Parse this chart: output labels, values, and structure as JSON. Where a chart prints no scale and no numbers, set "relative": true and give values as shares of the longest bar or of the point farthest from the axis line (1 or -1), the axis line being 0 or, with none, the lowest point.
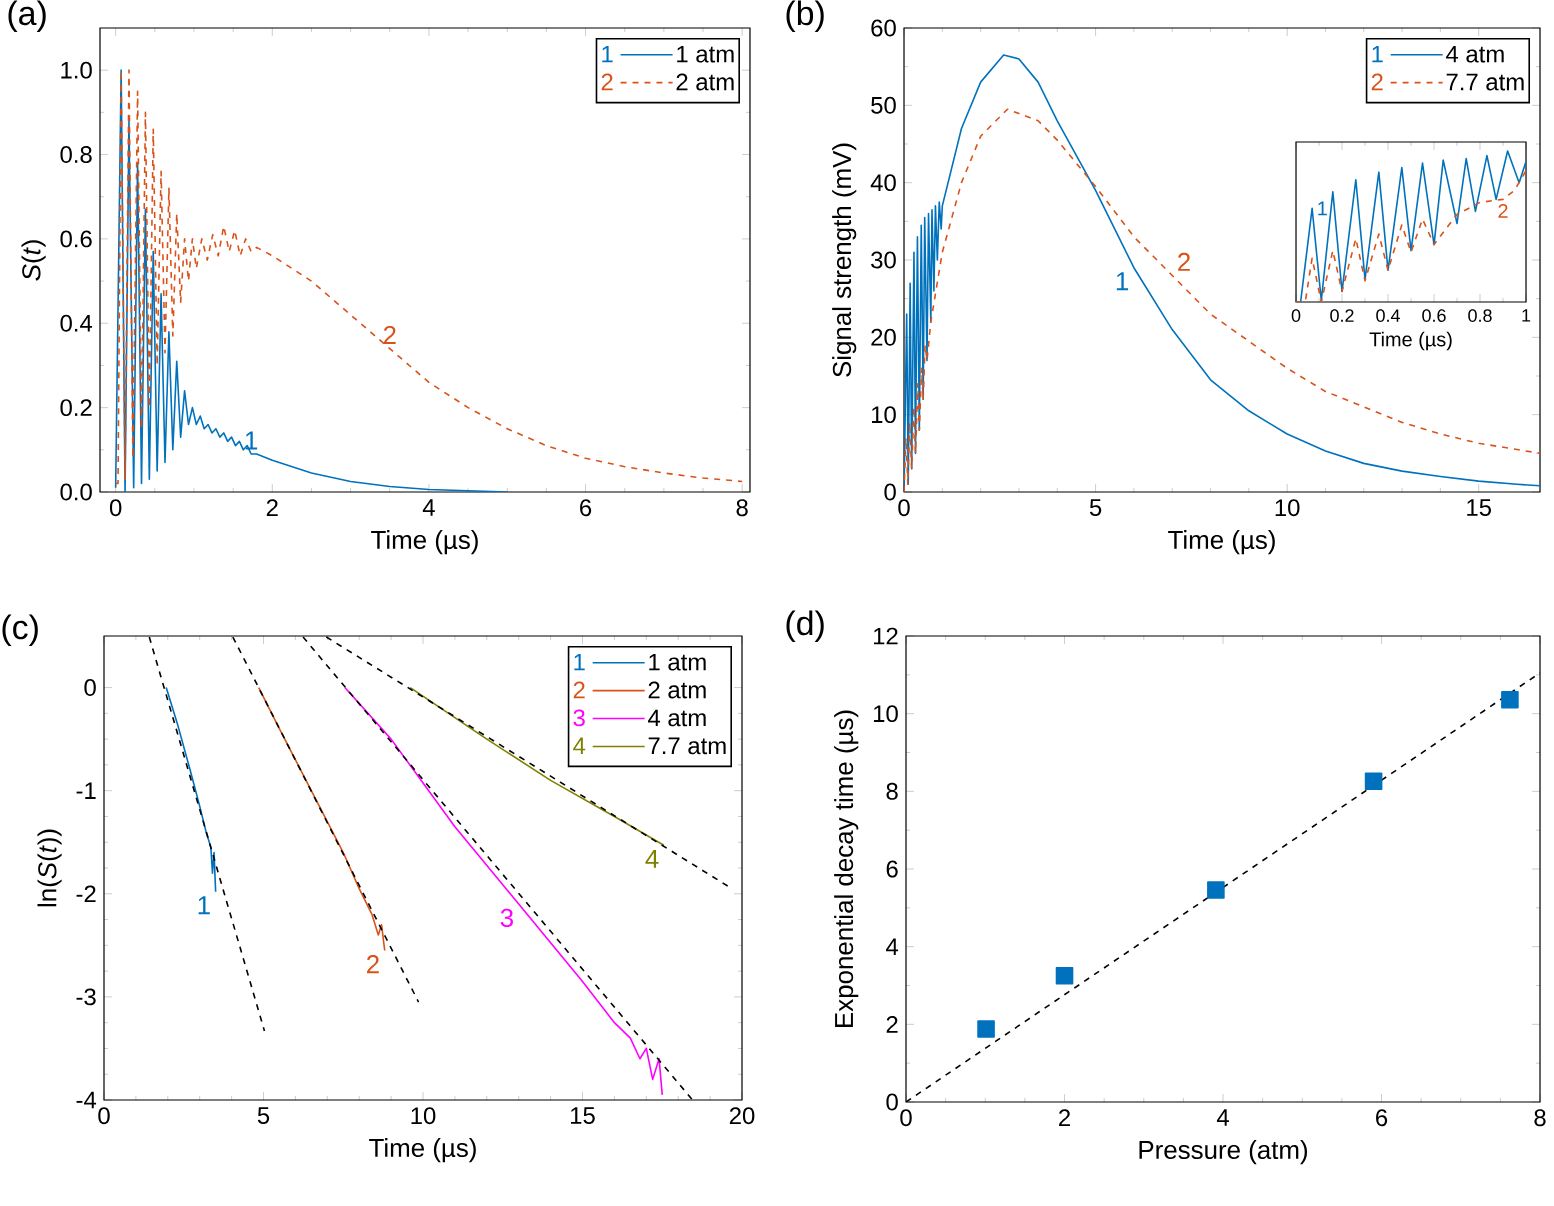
{
  "chart_data": [
    {
      "type": "line",
      "title": "(a)",
      "xlabel": "Time (µs)",
      "ylabel": "*S*(*t*)",
      "xlim": [
        -0.2,
        8.1
      ],
      "xticks": [
        0,
        2,
        4,
        6,
        8
      ],
      "ylim": [
        0,
        1.1
      ],
      "yticks": [
        {
          "value": 0,
          "label": "0.0"
        },
        {
          "value": 0.2,
          "label": "0.2"
        },
        {
          "value": 0.4,
          "label": "0.4"
        },
        {
          "value": 0.6,
          "label": "0.6"
        },
        {
          "value": 0.8,
          "label": "0.8"
        },
        {
          "value": 1,
          "label": "1.0"
        }
      ],
      "legend": "top right",
      "annotations": [
        {
          "text": "1",
          "x": 1.73,
          "y": 0.09
        },
        {
          "text": "2",
          "x": 3.5,
          "y": 0.34
        }
      ],
      "series": [
        {
          "name": "1 atm",
          "color": "#0072bd",
          "x": [
            0,
            0.07,
            0.12,
            0.17,
            0.23,
            0.28,
            0.33,
            0.38,
            0.43,
            0.48,
            0.53,
            0.58,
            0.63,
            0.68,
            0.73,
            0.78,
            0.83,
            0.88,
            0.93,
            0.98,
            1.03,
            1.08,
            1.13,
            1.18,
            1.23,
            1.28,
            1.33,
            1.38,
            1.43,
            1.48,
            1.53,
            1.58,
            1.63,
            1.68,
            1.73,
            1.8,
            2.0,
            2.5,
            3.0,
            3.5,
            4.0,
            4.5,
            5.0
          ],
          "values": [
            0.01,
            1.0,
            0.0,
            0.88,
            0.01,
            0.78,
            0.02,
            0.67,
            0.03,
            0.57,
            0.05,
            0.47,
            0.07,
            0.38,
            0.1,
            0.31,
            0.13,
            0.24,
            0.16,
            0.2,
            0.16,
            0.18,
            0.15,
            0.16,
            0.14,
            0.15,
            0.13,
            0.14,
            0.12,
            0.13,
            0.11,
            0.12,
            0.1,
            0.11,
            0.09,
            0.09,
            0.075,
            0.045,
            0.025,
            0.013,
            0.006,
            0.003,
            0.0
          ]
        },
        {
          "name": "2 atm",
          "color": "#d95319",
          "line_style": "dashed",
          "x": [
            0,
            0.03,
            0.07,
            0.12,
            0.17,
            0.22,
            0.28,
            0.33,
            0.38,
            0.43,
            0.48,
            0.53,
            0.58,
            0.63,
            0.68,
            0.73,
            0.78,
            0.83,
            0.88,
            0.93,
            0.98,
            1.03,
            1.1,
            1.17,
            1.24,
            1.31,
            1.38,
            1.45,
            1.52,
            1.59,
            1.66,
            1.73,
            1.8,
            2.0,
            2.5,
            3.0,
            3.5,
            4.0,
            4.5,
            5.0,
            5.5,
            6.0,
            6.5,
            7.0,
            7.5,
            8.0
          ],
          "values": [
            0.02,
            0.02,
            1.0,
            0.03,
            1.0,
            0.08,
            0.95,
            0.15,
            0.9,
            0.2,
            0.86,
            0.3,
            0.76,
            0.33,
            0.72,
            0.37,
            0.66,
            0.45,
            0.6,
            0.5,
            0.6,
            0.53,
            0.6,
            0.55,
            0.61,
            0.56,
            0.63,
            0.57,
            0.62,
            0.56,
            0.6,
            0.57,
            0.58,
            0.56,
            0.5,
            0.42,
            0.34,
            0.26,
            0.2,
            0.15,
            0.11,
            0.08,
            0.06,
            0.045,
            0.033,
            0.025
          ]
        }
      ]
    },
    {
      "type": "line",
      "title": "(b)",
      "xlabel": "Time (µs)",
      "ylabel": "Signal strength (mV)",
      "xlim": [
        0,
        16.6
      ],
      "xticks": [
        0,
        5,
        10,
        15
      ],
      "ylim": [
        0,
        60
      ],
      "yticks": [
        0,
        10,
        20,
        30,
        40,
        50,
        60
      ],
      "legend": "top right",
      "annotations": [
        {
          "text": "1",
          "x": 6.0,
          "y": 29
        },
        {
          "text": "2",
          "x": 7.0,
          "y": 28
        }
      ],
      "series": [
        {
          "name": "4 atm",
          "color": "#0072bd",
          "x": [
            0,
            0.07,
            0.11,
            0.16,
            0.2,
            0.26,
            0.3,
            0.35,
            0.4,
            0.45,
            0.5,
            0.54,
            0.6,
            0.64,
            0.7,
            0.73,
            0.78,
            0.82,
            0.87,
            0.92,
            0.97,
            1.0,
            1.5,
            2.0,
            2.6,
            3.0,
            3.5,
            4.0,
            4.5,
            5.0,
            5.5,
            6.0,
            7.0,
            8.0,
            9.0,
            10.0,
            11.0,
            12.0,
            13.0,
            14.0,
            15.0,
            16.0,
            16.6
          ],
          "values": [
            0,
            23,
            1,
            27,
            3,
            31,
            5,
            33,
            8,
            34.5,
            12,
            35.5,
            17,
            36,
            22,
            36.5,
            26,
            37,
            30,
            37.5,
            34,
            37,
            47,
            53,
            56.5,
            56,
            53,
            48,
            43.5,
            39,
            34,
            29,
            21,
            14.5,
            10.5,
            7.5,
            5.3,
            3.7,
            2.7,
            2,
            1.4,
            1,
            0.8
          ]
        },
        {
          "name": "7.7 atm",
          "color": "#d95319",
          "line_style": "dashed",
          "x": [
            0,
            0.05,
            0.1,
            0.15,
            0.2,
            0.26,
            0.3,
            0.36,
            0.4,
            0.46,
            0.5,
            0.55,
            0.6,
            0.7,
            0.8,
            0.9,
            1.0,
            1.5,
            2.0,
            2.7,
            3.5,
            4.0,
            5.0,
            6.0,
            7.0,
            8.0,
            9.0,
            10.0,
            11.0,
            12.0,
            13.0,
            14.0,
            15.0,
            16.0,
            16.6
          ],
          "values": [
            0,
            7,
            1,
            9,
            3,
            11,
            5,
            14,
            8,
            16,
            12,
            19,
            17,
            22,
            25,
            28,
            31,
            40,
            46,
            49.5,
            48,
            45.5,
            39.5,
            33,
            28,
            23,
            19.5,
            16,
            13,
            11,
            9,
            7.5,
            6.3,
            5.5,
            5
          ]
        }
      ]
    },
    {
      "type": "line",
      "relative": true,
      "xlabel": "Time (µs)",
      "tick_labels": "x",
      "xlim": [
        0,
        1
      ],
      "xticks": [
        0,
        0.2,
        0.4,
        0.6,
        0.8,
        1
      ],
      "annotations": [
        {
          "text": "1",
          "x": 0.07,
          "y": 0.62
        },
        {
          "text": "2",
          "x": 0.9,
          "y": 0.68
        }
      ],
      "series": [
        {
          "color": "#0072bd",
          "x": [
            0,
            0.02,
            0.07,
            0.11,
            0.16,
            0.2,
            0.26,
            0.3,
            0.36,
            0.4,
            0.46,
            0.5,
            0.55,
            0.6,
            0.64,
            0.7,
            0.74,
            0.78,
            0.83,
            0.87,
            0.92,
            0.97,
            1.0
          ],
          "values": [
            0,
            0,
            0.62,
            0.01,
            0.73,
            0.07,
            0.81,
            0.15,
            0.86,
            0.21,
            0.89,
            0.34,
            0.92,
            0.38,
            0.94,
            0.52,
            0.95,
            0.6,
            0.97,
            0.68,
            1.0,
            0.79,
            0.93
          ]
        },
        {
          "color": "#d95319",
          "line_style": "dashed",
          "x": [
            0,
            0.04,
            0.07,
            0.11,
            0.16,
            0.2,
            0.26,
            0.3,
            0.36,
            0.4,
            0.46,
            0.5,
            0.55,
            0.6,
            0.7,
            0.8,
            0.9,
            0.95,
            1.0
          ],
          "values": [
            0,
            0,
            0.29,
            0.0,
            0.34,
            0.07,
            0.42,
            0.14,
            0.45,
            0.21,
            0.51,
            0.33,
            0.55,
            0.38,
            0.58,
            0.66,
            0.68,
            0.74,
            0.87
          ]
        }
      ]
    },
    {
      "type": "line",
      "title": "(c)",
      "xlabel": "Time (µs)",
      "ylabel": "ln(*S*(*t*))",
      "xlim": [
        0,
        20
      ],
      "xticks": [
        0,
        5,
        10,
        15,
        20
      ],
      "ylim": [
        -4,
        0.5
      ],
      "yticks": [
        -4,
        -3,
        -2,
        -1,
        0
      ],
      "legend": "top right",
      "annotations": [
        {
          "text": "1",
          "x": 3.5,
          "y": -1.98
        },
        {
          "text": "2",
          "x": 8.8,
          "y": -2.55
        },
        {
          "text": "3",
          "x": 13,
          "y": -2.1
        },
        {
          "text": "4",
          "x": 17.55,
          "y": -1.53
        }
      ],
      "series": [
        {
          "name": "1 atm",
          "color": "#0072bd",
          "x": [
            1.95,
            2.3,
            2.7,
            3.0,
            3.2,
            3.35,
            3.4,
            3.45,
            3.5
          ],
          "values": [
            0,
            -0.35,
            -0.8,
            -1.15,
            -1.4,
            -1.55,
            -1.8,
            -1.6,
            -1.98
          ]
        },
        {
          "name": "2 atm",
          "color": "#d95319",
          "x": [
            4.85,
            5.5,
            6.5,
            7.5,
            8.0,
            8.4,
            8.6,
            8.7,
            8.8
          ],
          "values": [
            0,
            -0.4,
            -1.0,
            -1.6,
            -1.95,
            -2.2,
            -2.4,
            -2.3,
            -2.55
          ]
        },
        {
          "name": "4 atm",
          "color": "#ff00ff",
          "x": [
            7.55,
            9,
            11,
            13,
            15,
            16,
            16.5,
            16.8,
            17.0,
            17.2,
            17.4,
            17.5
          ],
          "values": [
            0,
            -0.5,
            -1.35,
            -2.1,
            -2.85,
            -3.25,
            -3.4,
            -3.6,
            -3.5,
            -3.8,
            -3.6,
            -3.95
          ]
        },
        {
          "name": "7.7 atm",
          "color": "#808000",
          "x": [
            9.6,
            12,
            14,
            16,
            17.55
          ],
          "values": [
            0,
            -0.5,
            -0.9,
            -1.25,
            -1.53
          ]
        },
        {
          "color": "#000000",
          "line_style": "dashed",
          "x": [
            1.42,
            5.03
          ],
          "values": [
            0.49,
            -3.33
          ]
        },
        {
          "color": "#000000",
          "line_style": "dashed",
          "x": [
            4.04,
            9.86
          ],
          "values": [
            0.49,
            -3.05
          ]
        },
        {
          "color": "#000000",
          "line_style": "dashed",
          "x": [
            6.24,
            18.45
          ],
          "values": [
            0.49,
            -4.0
          ]
        },
        {
          "color": "#000000",
          "line_style": "dashed",
          "x": [
            6.97,
            19.58
          ],
          "values": [
            0.49,
            -1.93
          ]
        }
      ]
    },
    {
      "type": "scatter",
      "title": "(d)",
      "xlabel": "Pressure (atm)",
      "ylabel": "Exponential decay time (µs)",
      "xlim": [
        0,
        8
      ],
      "xticks": [
        0,
        2,
        4,
        6,
        8
      ],
      "ylim": [
        0,
        12
      ],
      "yticks": [
        0,
        2,
        4,
        6,
        8,
        10,
        12
      ],
      "series": [
        {
          "color": "#0072bd",
          "marker": "square",
          "x": [
            1.01,
            2.0,
            3.91,
            5.9,
            7.62
          ],
          "values": [
            1.88,
            3.25,
            5.46,
            8.26,
            10.36
          ]
        },
        {
          "type": "line",
          "color": "#000000",
          "line_style": "dashed",
          "x": [
            0,
            8
          ],
          "values": [
            0,
            11.05
          ]
        }
      ]
    }
  ]
}
